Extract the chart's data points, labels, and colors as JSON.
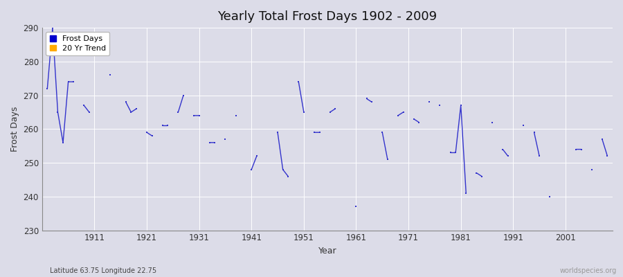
{
  "title": "Yearly Total Frost Days 1902 - 2009",
  "xlabel": "Year",
  "ylabel": "Frost Days",
  "subtitle": "Latitude 63.75 Longitude 22.75",
  "watermark": "worldspecies.org",
  "ylim": [
    230,
    290
  ],
  "xlim": [
    1901,
    2010
  ],
  "yticks": [
    230,
    240,
    250,
    260,
    270,
    280,
    290
  ],
  "xticks": [
    1911,
    1921,
    1931,
    1941,
    1951,
    1961,
    1971,
    1981,
    1991,
    2001
  ],
  "line_color": "#3333cc",
  "bg_color": "#dcdce8",
  "grid_color": "#ffffff",
  "legend_frost_color": "#0000cc",
  "legend_trend_color": "#ffaa00",
  "data": [
    [
      1902,
      272
    ],
    [
      1903,
      290
    ],
    [
      1904,
      265
    ],
    [
      1905,
      256
    ],
    [
      1906,
      274
    ],
    [
      1907,
      274
    ],
    [
      1909,
      267
    ],
    [
      1910,
      265
    ],
    [
      1914,
      276
    ],
    [
      1917,
      268
    ],
    [
      1918,
      265
    ],
    [
      1919,
      266
    ],
    [
      1921,
      259
    ],
    [
      1922,
      258
    ],
    [
      1924,
      261
    ],
    [
      1925,
      261
    ],
    [
      1927,
      265
    ],
    [
      1928,
      270
    ],
    [
      1930,
      264
    ],
    [
      1931,
      264
    ],
    [
      1933,
      256
    ],
    [
      1934,
      256
    ],
    [
      1936,
      257
    ],
    [
      1938,
      264
    ],
    [
      1941,
      248
    ],
    [
      1942,
      252
    ],
    [
      1946,
      259
    ],
    [
      1947,
      248
    ],
    [
      1948,
      246
    ],
    [
      1950,
      274
    ],
    [
      1951,
      265
    ],
    [
      1953,
      259
    ],
    [
      1954,
      259
    ],
    [
      1956,
      265
    ],
    [
      1957,
      266
    ],
    [
      1961,
      237
    ],
    [
      1963,
      269
    ],
    [
      1964,
      268
    ],
    [
      1966,
      259
    ],
    [
      1967,
      251
    ],
    [
      1969,
      264
    ],
    [
      1970,
      265
    ],
    [
      1972,
      263
    ],
    [
      1973,
      262
    ],
    [
      1975,
      268
    ],
    [
      1977,
      267
    ],
    [
      1979,
      253
    ],
    [
      1980,
      253
    ],
    [
      1981,
      267
    ],
    [
      1982,
      241
    ],
    [
      1984,
      247
    ],
    [
      1985,
      246
    ],
    [
      1987,
      262
    ],
    [
      1989,
      254
    ],
    [
      1990,
      252
    ],
    [
      1993,
      261
    ],
    [
      1995,
      259
    ],
    [
      1996,
      252
    ],
    [
      1998,
      240
    ],
    [
      2003,
      254
    ],
    [
      2004,
      254
    ],
    [
      2006,
      248
    ],
    [
      2008,
      257
    ],
    [
      2009,
      252
    ]
  ]
}
